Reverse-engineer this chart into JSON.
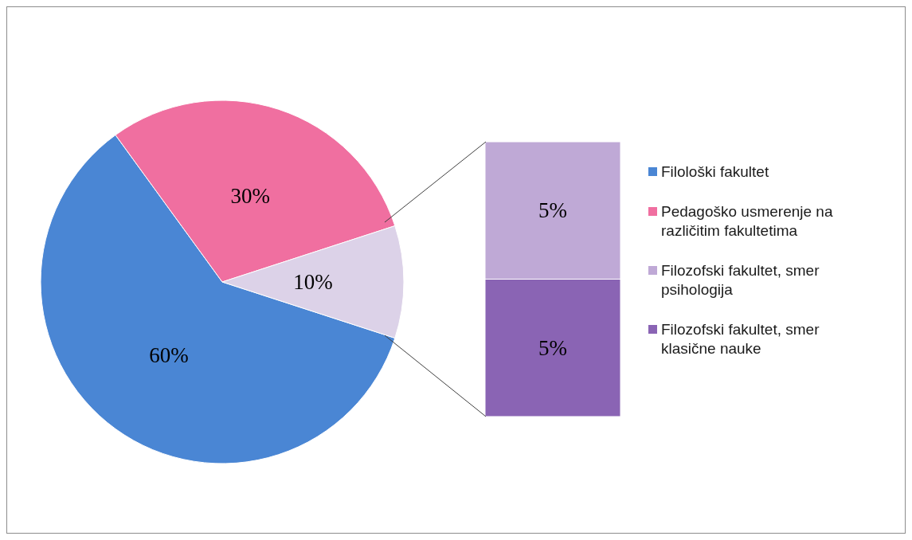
{
  "chart_data": [
    {
      "type": "pie",
      "categories": [
        "Filološki fakultet",
        "Pedagoško usmerenje na različitim fakultetima",
        null
      ],
      "values": [
        60,
        30,
        10
      ],
      "colors": [
        "#4a86d4",
        "#f06fa0",
        "#dcd2e8"
      ],
      "value_labels": [
        "60%",
        "30%",
        "10%"
      ],
      "legend": "right"
    },
    {
      "type": "bar",
      "stacked": true,
      "categories": [
        null
      ],
      "legend": "right",
      "series": [
        {
          "name": "Filozofski fakultet, smer klasične nauke",
          "color": "#8a64b4",
          "values": [
            5
          ],
          "value_labels": [
            "5%"
          ]
        },
        {
          "name": "Filozofski fakultet, smer psihologija",
          "color": "#bfa9d6",
          "values": [
            5
          ],
          "value_labels": [
            "5%"
          ]
        }
      ]
    }
  ]
}
